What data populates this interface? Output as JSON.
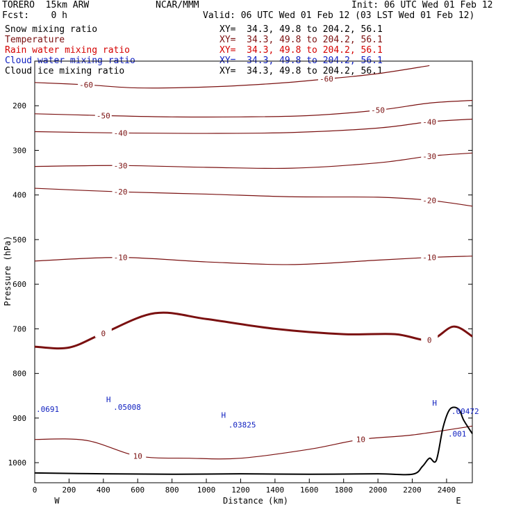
{
  "header": {
    "model": "TORERO  15km ARW",
    "org": "NCAR/MMM",
    "init": "Init: 06 UTC Wed 01 Feb 12",
    "fcst": "Fcst:    0 h",
    "valid": "Valid: 06 UTC Wed 01 Feb 12 (03 LST Wed 01 Feb 12)"
  },
  "legend": [
    {
      "label": "Snow mixing ratio",
      "xy": "XY=  34.3, 49.8 to 204.2, 56.1",
      "color": "#000000"
    },
    {
      "label": "Temperature",
      "xy": "XY=  34.3, 49.8 to 204.2, 56.1",
      "color": "#7a1010"
    },
    {
      "label": "Rain water mixing ratio",
      "xy": "XY=  34.3, 49.8 to 204.2, 56.1",
      "color": "#d40000"
    },
    {
      "label": "Cloud water mixing ratio",
      "xy": "XY=  34.3, 49.8 to 204.2, 56.1",
      "color": "#1020c0"
    },
    {
      "label": "Cloud ice mixing ratio",
      "xy": "XY=  34.3, 49.8 to 204.2, 56.1",
      "color": "#000000"
    }
  ],
  "chart_data": {
    "type": "line",
    "xlabel": "Distance (km)",
    "ylabel": "Pressure (hPa)",
    "x_ticks": [
      "0",
      "200",
      "400",
      "600",
      "800",
      "1000",
      "1200",
      "1400",
      "1600",
      "1800",
      "2000",
      "2200",
      "2400"
    ],
    "y_ticks": [
      "200",
      "300",
      "400",
      "500",
      "600",
      "700",
      "800",
      "900",
      "1000"
    ],
    "xlim": [
      0,
      2550
    ],
    "ylim": [
      100,
      1045
    ],
    "x_end_labels": {
      "left": "W",
      "right": "E"
    },
    "temperature_contours": [
      {
        "label": "-60",
        "points": [
          [
            0,
            148
          ],
          [
            300,
            153
          ],
          [
            600,
            160
          ],
          [
            1000,
            158
          ],
          [
            1400,
            150
          ],
          [
            1700,
            140
          ],
          [
            2000,
            128
          ],
          [
            2300,
            110
          ]
        ]
      },
      {
        "label": "-50",
        "points": [
          [
            0,
            218
          ],
          [
            400,
            222
          ],
          [
            800,
            225
          ],
          [
            1200,
            225
          ],
          [
            1600,
            222
          ],
          [
            2000,
            210
          ],
          [
            2300,
            194
          ],
          [
            2550,
            188
          ]
        ]
      },
      {
        "label": "-40",
        "points": [
          [
            0,
            258
          ],
          [
            500,
            261
          ],
          [
            1000,
            262
          ],
          [
            1500,
            260
          ],
          [
            2000,
            250
          ],
          [
            2300,
            236
          ],
          [
            2550,
            230
          ]
        ]
      },
      {
        "label": "-30",
        "points": [
          [
            0,
            336
          ],
          [
            500,
            334
          ],
          [
            1000,
            338
          ],
          [
            1500,
            340
          ],
          [
            2000,
            328
          ],
          [
            2300,
            313
          ],
          [
            2550,
            306
          ]
        ]
      },
      {
        "label": "-20",
        "points": [
          [
            0,
            385
          ],
          [
            500,
            393
          ],
          [
            1000,
            398
          ],
          [
            1500,
            404
          ],
          [
            2000,
            405
          ],
          [
            2300,
            412
          ],
          [
            2550,
            425
          ]
        ]
      },
      {
        "label": "-10",
        "points": [
          [
            0,
            548
          ],
          [
            500,
            540
          ],
          [
            1000,
            550
          ],
          [
            1500,
            556
          ],
          [
            2000,
            546
          ],
          [
            2300,
            540
          ],
          [
            2550,
            537
          ]
        ]
      },
      {
        "label": "0",
        "points": [
          [
            0,
            740
          ],
          [
            200,
            742
          ],
          [
            400,
            710
          ],
          [
            700,
            665
          ],
          [
            1000,
            678
          ],
          [
            1400,
            700
          ],
          [
            1800,
            712
          ],
          [
            2100,
            712
          ],
          [
            2300,
            725
          ],
          [
            2440,
            695
          ],
          [
            2550,
            717
          ]
        ]
      },
      {
        "label": "10",
        "points": [
          [
            0,
            948
          ],
          [
            300,
            950
          ],
          [
            600,
            985
          ],
          [
            900,
            990
          ],
          [
            1200,
            990
          ],
          [
            1600,
            970
          ],
          [
            1900,
            948
          ],
          [
            2200,
            938
          ],
          [
            2550,
            918
          ]
        ]
      }
    ],
    "cloud_water_maxima": [
      {
        "label": ".0691",
        "x": 0,
        "p": 880
      },
      {
        "label": ".05008",
        "x": 450,
        "p": 875
      },
      {
        "label": ".03825",
        "x": 1120,
        "p": 915
      },
      {
        "label": ".00472",
        "x": 2420,
        "p": 885
      },
      {
        "label": ".001",
        "x": 2400,
        "p": 935
      }
    ],
    "highs": [
      {
        "label": "H",
        "x": 430,
        "p": 858
      },
      {
        "label": "H",
        "x": 1100,
        "p": 893
      },
      {
        "label": "H",
        "x": 2330,
        "p": 866
      }
    ],
    "terrain": [
      [
        0,
        1023
      ],
      [
        400,
        1025
      ],
      [
        800,
        1026
      ],
      [
        1200,
        1025
      ],
      [
        1600,
        1026
      ],
      [
        2000,
        1025
      ],
      [
        2200,
        1026
      ],
      [
        2260,
        1008
      ],
      [
        2300,
        990
      ],
      [
        2340,
        995
      ],
      [
        2380,
        920
      ],
      [
        2420,
        880
      ],
      [
        2470,
        880
      ],
      [
        2500,
        905
      ],
      [
        2550,
        935
      ]
    ]
  }
}
